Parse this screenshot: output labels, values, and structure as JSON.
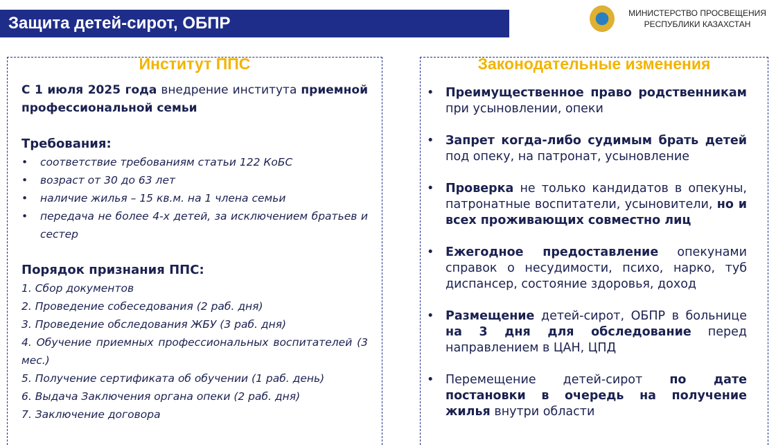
{
  "header": {
    "title": "Защита детей-сирот, ОБПР",
    "ministry_line1": "МИНИСТЕРСТВО ПРОСВЕЩЕНИЯ",
    "ministry_line2": "РЕСПУБЛИКИ КАЗАХСТАН"
  },
  "left": {
    "title": "Институт ППС",
    "intro": [
      {
        "text": "С 1 июля 2025 года",
        "bold": true
      },
      {
        "text": "внедрение института",
        "bold": false
      },
      {
        "text": "приемной профессиональной семьи",
        "bold": true
      }
    ],
    "requirements_title": "Требования:",
    "requirements": [
      "соответствие требованиям статьи 122 КоБС",
      "возраст от 30 до 63 лет",
      "наличие жилья – 15 кв.м. на 1 члена семьи",
      "передача не более 4-х детей, за исключением братьев и сестер"
    ],
    "order_title": "Порядок признания ППС:",
    "steps": [
      "1. Сбор документов",
      "2. Проведение собеседования (2 раб. дня)",
      "3. Проведение обследования ЖБУ (3 раб. дня)",
      "4. Обучение приемных профессиональных воспитателей (3 мес.)",
      "5. Получение сертификата об обучении (1 раб. день)",
      "6. Выдача Заключения органа опеки (2 раб. дня)",
      "7. Заключение договора"
    ]
  },
  "right": {
    "title": "Законодательные изменения",
    "items": [
      [
        {
          "text": "Преимущественное право родственникам",
          "bold": true
        },
        {
          "text": "при усыновлении, опеки",
          "bold": false
        }
      ],
      [
        {
          "text": "Запрет когда-либо судимым брать детей",
          "bold": true
        },
        {
          "text": "под опеку, на патронат, усыновление",
          "bold": false
        }
      ],
      [
        {
          "text": "Проверка",
          "bold": true
        },
        {
          "text": "не только кандидатов в опекуны, патронатные воспитатели, усыновители,",
          "bold": false
        },
        {
          "text": "но и всех проживающих совместно лиц",
          "bold": true
        }
      ],
      [
        {
          "text": "Ежегодное предоставление",
          "bold": true
        },
        {
          "text": "опекунами справок о несудимости, психо, нарко, туб диспансер, состояние здоровья, доход",
          "bold": false
        }
      ],
      [
        {
          "text": "Размещение",
          "bold": true
        },
        {
          "text": "детей-сирот, ОБПР в больнице",
          "bold": false
        },
        {
          "text": "на 3 дня для обследование",
          "bold": true
        },
        {
          "text": "перед направлением в ЦАН, ЦПД",
          "bold": false
        }
      ],
      [
        {
          "text": "Перемещение детей-сирот",
          "bold": false
        },
        {
          "text": "по дате постановки в очередь на получение жилья",
          "bold": true
        },
        {
          "text": "внутри области",
          "bold": false
        }
      ]
    ]
  }
}
